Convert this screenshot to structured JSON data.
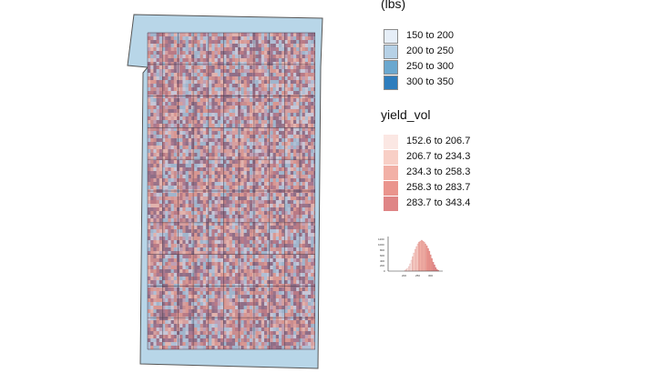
{
  "legend_top": {
    "title": "(lbs)",
    "items": [
      {
        "label": "150 to 200",
        "color": "#e6eef7"
      },
      {
        "label": "200 to 250",
        "color": "#b6d1e6"
      },
      {
        "label": "250 to 300",
        "color": "#6ba8cf"
      },
      {
        "label": "300 to 350",
        "color": "#2e7dbd"
      }
    ],
    "swatch_border": "#8a8a8a"
  },
  "legend_yield": {
    "title": "yield_vol",
    "items": [
      {
        "label": "152.6 to 206.7",
        "color": "#fbe7e3"
      },
      {
        "label": "206.7 to 234.3",
        "color": "#f8cfc6"
      },
      {
        "label": "234.3 to 258.3",
        "color": "#f2b0a6"
      },
      {
        "label": "258.3 to 283.7",
        "color": "#ea948d"
      },
      {
        "label": "283.7 to 343.4",
        "color": "#df8586"
      }
    ]
  },
  "histogram": {
    "yticks": [
      "1200",
      "1000",
      "800",
      "600",
      "400",
      "200",
      "0"
    ],
    "xticks": [
      "200",
      "250",
      "300"
    ]
  },
  "map": {
    "boundary_fill": "#b8d6e8",
    "boundary_stroke": "#555555"
  }
}
